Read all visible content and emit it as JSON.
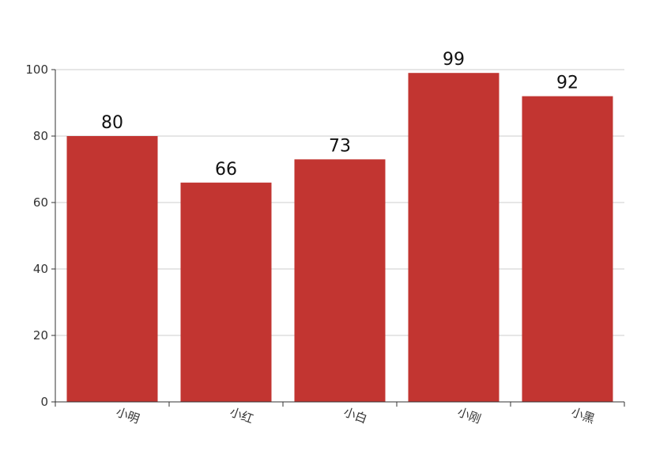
{
  "chart_data": {
    "type": "bar",
    "categories": [
      "小明",
      "小红",
      "小白",
      "小刚",
      "小黑"
    ],
    "values": [
      80,
      66,
      73,
      99,
      92
    ],
    "title": "",
    "xlabel": "",
    "ylabel": "",
    "ylim": [
      0,
      100
    ],
    "yticks": [
      "0",
      "20",
      "40",
      "60",
      "80",
      "100"
    ],
    "grid": true,
    "data_labels": [
      "80",
      "66",
      "73",
      "99",
      "92"
    ],
    "colors": {
      "bar": "#c23531",
      "grid": "#cccccc",
      "axis": "#333333"
    }
  }
}
